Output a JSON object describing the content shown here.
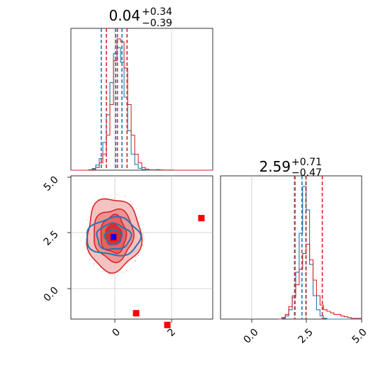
{
  "chart_data": [
    {
      "panel": "top-left",
      "type": "histogram",
      "title": {
        "value": "0.04",
        "plus": "+0.34",
        "minus": "−0.39"
      },
      "xlim": [
        -1.6,
        3.4
      ],
      "grid": true,
      "bin_edges": [
        -1.6,
        -1.475,
        -1.35,
        -1.225,
        -1.1,
        -0.975,
        -0.85,
        -0.725,
        -0.6,
        -0.475,
        -0.35,
        -0.225,
        -0.1,
        0.025,
        0.15,
        0.275,
        0.4,
        0.525,
        0.65,
        0.775,
        0.9,
        1.025,
        1.15,
        1.275,
        1.4,
        1.525,
        1.65,
        1.775,
        1.9,
        2.025,
        2.15,
        2.275,
        2.4,
        2.525,
        2.65,
        2.775,
        2.9,
        3.025,
        3.15,
        3.275,
        3.4
      ],
      "series": [
        {
          "color": "#1f77b4",
          "counts": [
            0,
            0,
            0,
            0,
            0,
            0.3,
            1.2,
            3.5,
            8,
            19,
            38,
            60,
            80,
            84,
            74,
            50,
            27,
            11,
            4,
            1.3,
            0.4,
            0.1,
            0,
            0,
            0,
            0,
            0,
            0,
            0,
            0,
            0,
            0,
            0,
            0,
            0,
            0,
            0,
            0,
            0,
            0
          ],
          "quantiles": [
            -0.53,
            -0.02,
            0.2
          ]
        },
        {
          "color": "#d62728",
          "counts": [
            0,
            0,
            0,
            0,
            0,
            0.2,
            0.6,
            1.8,
            5,
            11,
            24,
            45,
            75,
            90,
            88,
            70,
            45,
            24,
            11,
            5,
            1.8,
            0.7,
            0.3,
            0.2,
            0.4,
            0.2,
            0.1,
            0.1,
            0.1,
            0,
            0,
            0,
            0,
            0,
            0,
            0,
            0,
            0,
            0,
            0
          ],
          "quantiles": [
            -0.35,
            0.04,
            0.38
          ]
        }
      ]
    },
    {
      "panel": "bottom-left",
      "type": "contour",
      "xlim": [
        -1.6,
        3.4
      ],
      "ylim": [
        -1.1,
        5.0
      ],
      "xticks": [
        "0",
        "2"
      ],
      "yticks": [
        "0.0",
        "2.5",
        "5.0"
      ],
      "grid": true,
      "series": [
        {
          "color": "#d62728",
          "center": [
            -0.1,
            2.5
          ],
          "contour_radii": [
            [
              0.95,
              1.55
            ],
            [
              0.7,
              1.1
            ],
            [
              0.45,
              0.8
            ],
            [
              0.28,
              0.45
            ]
          ],
          "markers": [
            [
              -0.1,
              2.35
            ],
            [
              0.7,
              -0.85
            ],
            [
              1.8,
              -1.35
            ],
            [
              3.0,
              3.2
            ]
          ]
        },
        {
          "color": "#1f77b4",
          "center": [
            -0.1,
            2.4
          ],
          "contour_radii": [
            [
              0.95,
              0.8
            ],
            [
              0.6,
              0.55
            ],
            [
              0.3,
              0.3
            ]
          ],
          "markers": [
            [
              -0.1,
              2.4
            ]
          ]
        }
      ]
    },
    {
      "panel": "bottom-right",
      "type": "histogram",
      "title": {
        "value": "2.59",
        "plus": "+0.71",
        "minus": "−0.47"
      },
      "xlim": [
        -1.1,
        5.0
      ],
      "xticks": [
        "0.0",
        "2.5",
        "5.0"
      ],
      "grid": true,
      "bin_edges": [
        1.4,
        1.55,
        1.7,
        1.85,
        2.0,
        2.15,
        2.3,
        2.45,
        2.6,
        2.75,
        2.9,
        3.05,
        3.2,
        3.35,
        3.5,
        3.65,
        3.8,
        3.95,
        4.1,
        4.25,
        4.4,
        4.55,
        4.7,
        4.85,
        5.0
      ],
      "series": [
        {
          "color": "#1f77b4",
          "counts": [
            0,
            0.5,
            2,
            6,
            15,
            30,
            55,
            85,
            70,
            35,
            15,
            6,
            2,
            0.5,
            0,
            0,
            0,
            0,
            0,
            0,
            0,
            0,
            0,
            0
          ],
          "quantiles": [
            2.1,
            2.42,
            2.6
          ]
        },
        {
          "color": "#d62728",
          "counts": [
            0,
            1,
            3,
            8,
            14,
            22,
            32,
            42,
            48,
            38,
            25,
            15,
            9,
            6,
            5,
            4,
            3,
            3,
            2,
            1.5,
            1,
            0.5,
            0.5,
            0.5
          ],
          "quantiles": [
            2.12,
            2.59,
            3.3
          ]
        }
      ]
    }
  ]
}
